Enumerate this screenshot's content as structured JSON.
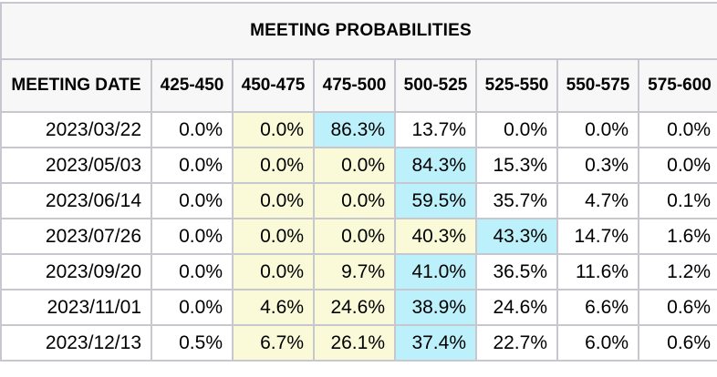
{
  "title": "MEETING PROBABILITIES",
  "colors": {
    "header_background": "#f7f7f8",
    "row_background": "#ffffff",
    "highlight_yellow": "#fafad8",
    "highlight_cyan": "#bcf0fa",
    "border": "#c7c7cf",
    "text": "#000000"
  },
  "table": {
    "columns": [
      "MEETING DATE",
      "425-450",
      "450-475",
      "475-500",
      "500-525",
      "525-550",
      "550-575",
      "575-600"
    ],
    "rows": [
      {
        "date": "2023/03/22",
        "values": [
          "0.0%",
          "0.0%",
          "86.3%",
          "13.7%",
          "0.0%",
          "0.0%",
          "0.0%"
        ],
        "highlights": [
          "",
          "y",
          "c",
          "",
          "",
          "",
          ""
        ]
      },
      {
        "date": "2023/05/03",
        "values": [
          "0.0%",
          "0.0%",
          "0.0%",
          "84.3%",
          "15.3%",
          "0.3%",
          "0.0%"
        ],
        "highlights": [
          "",
          "y",
          "y",
          "c",
          "",
          "",
          ""
        ]
      },
      {
        "date": "2023/06/14",
        "values": [
          "0.0%",
          "0.0%",
          "0.0%",
          "59.5%",
          "35.7%",
          "4.7%",
          "0.1%"
        ],
        "highlights": [
          "",
          "y",
          "y",
          "c",
          "",
          "",
          ""
        ]
      },
      {
        "date": "2023/07/26",
        "values": [
          "0.0%",
          "0.0%",
          "0.0%",
          "40.3%",
          "43.3%",
          "14.7%",
          "1.6%"
        ],
        "highlights": [
          "",
          "y",
          "y",
          "y",
          "c",
          "",
          ""
        ]
      },
      {
        "date": "2023/09/20",
        "values": [
          "0.0%",
          "0.0%",
          "9.7%",
          "41.0%",
          "36.5%",
          "11.6%",
          "1.2%"
        ],
        "highlights": [
          "",
          "y",
          "y",
          "c",
          "",
          "",
          ""
        ]
      },
      {
        "date": "2023/11/01",
        "values": [
          "0.0%",
          "4.6%",
          "24.6%",
          "38.9%",
          "24.6%",
          "6.6%",
          "0.6%"
        ],
        "highlights": [
          "",
          "y",
          "y",
          "c",
          "",
          "",
          ""
        ]
      },
      {
        "date": "2023/12/13",
        "values": [
          "0.5%",
          "6.7%",
          "26.1%",
          "37.4%",
          "22.7%",
          "6.0%",
          "0.6%"
        ],
        "highlights": [
          "",
          "y",
          "y",
          "c",
          "",
          "",
          ""
        ]
      }
    ]
  },
  "chart_data": {
    "type": "table",
    "title": "MEETING PROBABILITIES",
    "row_label": "MEETING DATE",
    "categories": [
      "425-450",
      "450-475",
      "475-500",
      "500-525",
      "525-550",
      "550-575",
      "575-600"
    ],
    "series": [
      {
        "name": "2023/03/22",
        "values": [
          0.0,
          0.0,
          86.3,
          13.7,
          0.0,
          0.0,
          0.0
        ]
      },
      {
        "name": "2023/05/03",
        "values": [
          0.0,
          0.0,
          0.0,
          84.3,
          15.3,
          0.3,
          0.0
        ]
      },
      {
        "name": "2023/06/14",
        "values": [
          0.0,
          0.0,
          0.0,
          59.5,
          35.7,
          4.7,
          0.1
        ]
      },
      {
        "name": "2023/07/26",
        "values": [
          0.0,
          0.0,
          0.0,
          40.3,
          43.3,
          14.7,
          1.6
        ]
      },
      {
        "name": "2023/09/20",
        "values": [
          0.0,
          0.0,
          9.7,
          41.0,
          36.5,
          11.6,
          1.2
        ]
      },
      {
        "name": "2023/11/01",
        "values": [
          0.0,
          4.6,
          24.6,
          38.9,
          24.6,
          6.6,
          0.6
        ]
      },
      {
        "name": "2023/12/13",
        "values": [
          0.5,
          6.7,
          26.1,
          37.4,
          22.7,
          6.0,
          0.6
        ]
      }
    ],
    "units": "percent",
    "notes": "Cells shaded pale yellow/cyan indicate highlighted probability range per meeting; cyan marks the modal range."
  }
}
